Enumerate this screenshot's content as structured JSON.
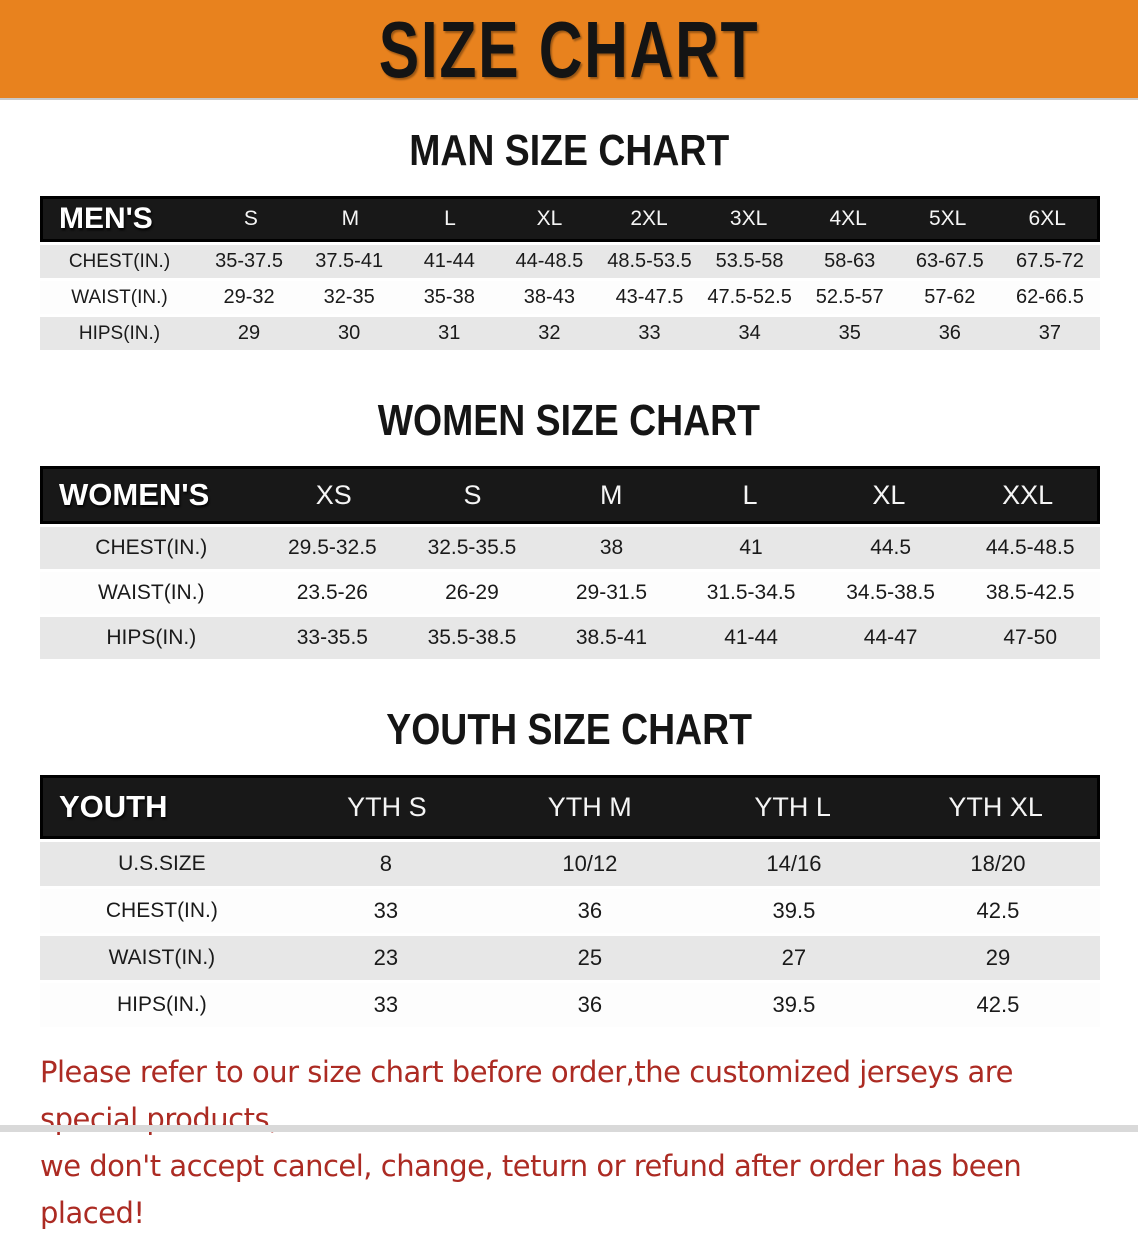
{
  "banner": {
    "title": "SIZE CHART",
    "bg_color": "#E8821E",
    "text_color": "#141414"
  },
  "men": {
    "heading": "MAN SIZE CHART",
    "corner": "MEN'S",
    "columns": [
      "S",
      "M",
      "L",
      "XL",
      "2XL",
      "3XL",
      "4XL",
      "5XL",
      "6XL"
    ],
    "rows": [
      {
        "label": "CHEST(IN.)",
        "values": [
          "35-37.5",
          "37.5-41",
          "41-44",
          "44-48.5",
          "48.5-53.5",
          "53.5-58",
          "58-63",
          "63-67.5",
          "67.5-72"
        ]
      },
      {
        "label": "WAIST(IN.)",
        "values": [
          "29-32",
          "32-35",
          "35-38",
          "38-43",
          "43-47.5",
          "47.5-52.5",
          "52.5-57",
          "57-62",
          "62-66.5"
        ]
      },
      {
        "label": "HIPS(IN.)",
        "values": [
          "29",
          "30",
          "31",
          "32",
          "33",
          "34",
          "35",
          "36",
          "37"
        ]
      }
    ]
  },
  "women": {
    "heading": "WOMEN SIZE CHART",
    "corner": "WOMEN'S",
    "columns": [
      "XS",
      "S",
      "M",
      "L",
      "XL",
      "XXL"
    ],
    "rows": [
      {
        "label": "CHEST(IN.)",
        "values": [
          "29.5-32.5",
          "32.5-35.5",
          "38",
          "41",
          "44.5",
          "44.5-48.5"
        ]
      },
      {
        "label": "WAIST(IN.)",
        "values": [
          "23.5-26",
          "26-29",
          "29-31.5",
          "31.5-34.5",
          "34.5-38.5",
          "38.5-42.5"
        ]
      },
      {
        "label": "HIPS(IN.)",
        "values": [
          "33-35.5",
          "35.5-38.5",
          "38.5-41",
          "41-44",
          "44-47",
          "47-50"
        ]
      }
    ]
  },
  "youth": {
    "heading": "YOUTH SIZE CHART",
    "corner": "YOUTH",
    "columns": [
      "YTH S",
      "YTH M",
      "YTH L",
      "YTH XL"
    ],
    "rows": [
      {
        "label": "U.S.SIZE",
        "values": [
          "8",
          "10/12",
          "14/16",
          "18/20"
        ]
      },
      {
        "label": "CHEST(IN.)",
        "values": [
          "33",
          "36",
          "39.5",
          "42.5"
        ]
      },
      {
        "label": "WAIST(IN.)",
        "values": [
          "23",
          "25",
          "27",
          "29"
        ]
      },
      {
        "label": "HIPS(IN.)",
        "values": [
          "33",
          "36",
          "39.5",
          "42.5"
        ]
      }
    ]
  },
  "footer": {
    "line1": "Please refer to our size chart before order,the customized jerseys are special products,",
    "line2": "we don't accept cancel, change, teturn or refund after order has been placed!",
    "text_color": "#AC2B23"
  }
}
